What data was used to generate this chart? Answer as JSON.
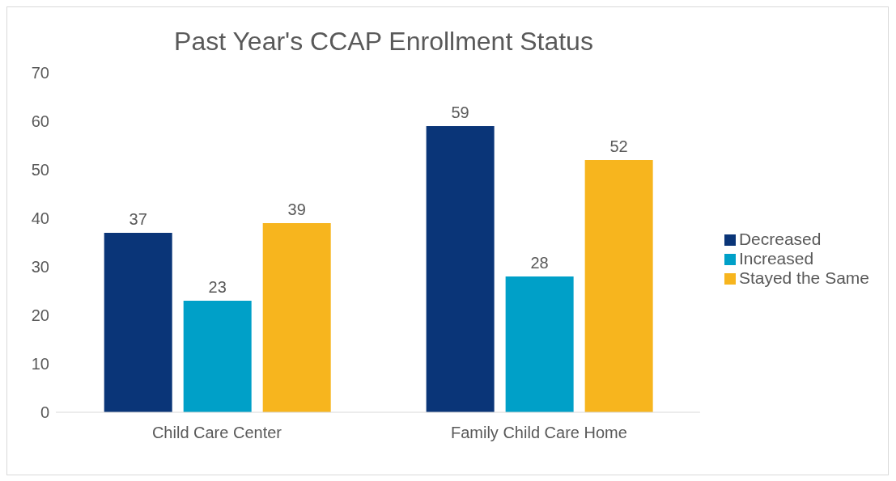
{
  "chart_data": {
    "type": "bar",
    "title": "Past Year's CCAP Enrollment Status",
    "categories": [
      "Child Care Center",
      "Family Child Care Home"
    ],
    "series": [
      {
        "name": "Decreased",
        "color": "#0a3578",
        "values": [
          37,
          59
        ]
      },
      {
        "name": "Increased",
        "color": "#00a0c8",
        "values": [
          23,
          28
        ]
      },
      {
        "name": "Stayed the Same",
        "color": "#f7b51e",
        "values": [
          39,
          52
        ]
      }
    ],
    "ylim": [
      0,
      70
    ],
    "yticks": [
      0,
      10,
      20,
      30,
      40,
      50,
      60,
      70
    ],
    "legend": "right",
    "data_labels": true
  }
}
